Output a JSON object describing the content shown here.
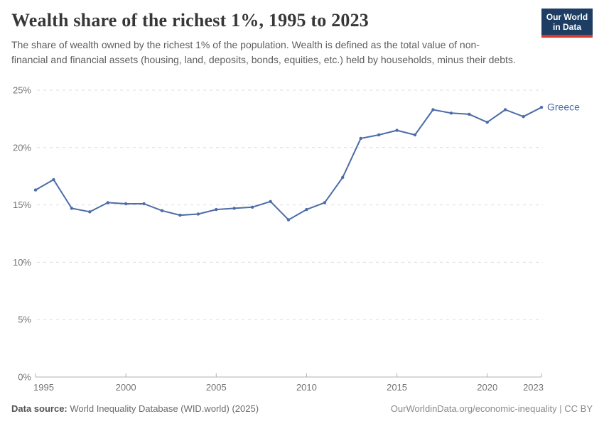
{
  "header": {
    "title": "Wealth share of the richest 1%, 1995 to 2023",
    "subtitle": "The share of wealth owned by the richest 1% of the population. Wealth is defined as the total value of non-financial and financial assets (housing, land, deposits, bonds, equities, etc.) held by households, minus their debts.",
    "logo": {
      "line1": "Our World",
      "line2": "in Data",
      "bg_color": "#1d3d63",
      "bar_color": "#d7382b"
    }
  },
  "chart_data": {
    "type": "line",
    "title": "Wealth share of the richest 1%, 1995 to 2023",
    "x": [
      1995,
      1996,
      1997,
      1998,
      1999,
      2000,
      2001,
      2002,
      2003,
      2004,
      2005,
      2006,
      2007,
      2008,
      2009,
      2010,
      2011,
      2012,
      2013,
      2014,
      2015,
      2016,
      2017,
      2018,
      2019,
      2020,
      2021,
      2022,
      2023
    ],
    "series": [
      {
        "name": "Greece",
        "color": "#4C6CA8",
        "values": [
          16.3,
          17.2,
          14.7,
          14.4,
          15.2,
          15.1,
          15.1,
          14.5,
          14.1,
          14.2,
          14.6,
          14.7,
          14.8,
          15.3,
          13.7,
          14.6,
          15.2,
          17.4,
          20.8,
          21.1,
          21.5,
          21.1,
          23.3,
          23.0,
          22.9,
          22.2,
          23.3,
          22.7,
          23.5
        ]
      }
    ],
    "xlabel": "",
    "ylabel": "",
    "xlim": [
      1995,
      2023
    ],
    "ylim": [
      0,
      25
    ],
    "x_ticks": [
      1995,
      2000,
      2005,
      2010,
      2015,
      2020,
      2023
    ],
    "y_ticks": {
      "values": [
        0,
        5,
        10,
        15,
        20,
        25
      ],
      "labels": [
        "0%",
        "5%",
        "10%",
        "15%",
        "20%",
        "25%"
      ]
    },
    "grid": "horizontal-dashed",
    "legend_position": "end-of-line-label",
    "end_label": "Greece"
  },
  "footer": {
    "source_label": "Data source:",
    "source_text": "World Inequality Database (WID.world) (2025)",
    "attribution": "OurWorldinData.org/economic-inequality | CC BY"
  },
  "colors": {
    "line": "#4C6CA8",
    "grid": "#dcdcdc",
    "axis": "#b0b0b0",
    "tick_text": "#737373",
    "title_text": "#383636",
    "subtitle_text": "#5e5e5e",
    "footer_text": "#6b6b6b"
  }
}
